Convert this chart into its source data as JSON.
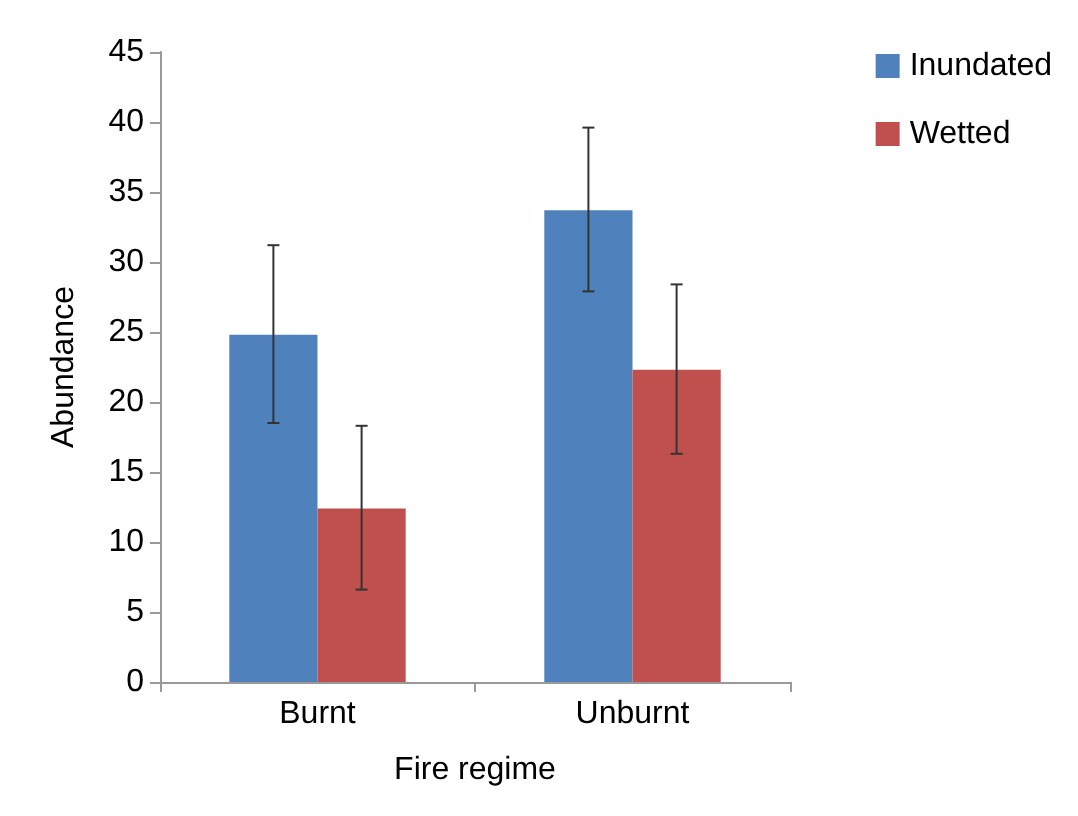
{
  "chart_data": {
    "type": "bar",
    "xlabel": "Fire regime",
    "ylabel": "Abundance",
    "categories": [
      "Burnt",
      "Unburnt"
    ],
    "series": [
      {
        "name": "Inundated",
        "color": "#4f81bd",
        "values": [
          24.8,
          33.7
        ],
        "errors": [
          [
            18.5,
            31.2
          ],
          [
            27.9,
            39.6
          ]
        ]
      },
      {
        "name": "Wetted",
        "color": "#c0504d",
        "values": [
          12.4,
          22.3
        ],
        "errors": [
          [
            6.6,
            18.3
          ],
          [
            16.3,
            28.4
          ]
        ]
      }
    ],
    "ylim": [
      0,
      45
    ],
    "yticks": [
      0,
      5,
      10,
      15,
      20,
      25,
      30,
      35,
      40,
      45
    ],
    "grid": false,
    "legend": "top right"
  }
}
